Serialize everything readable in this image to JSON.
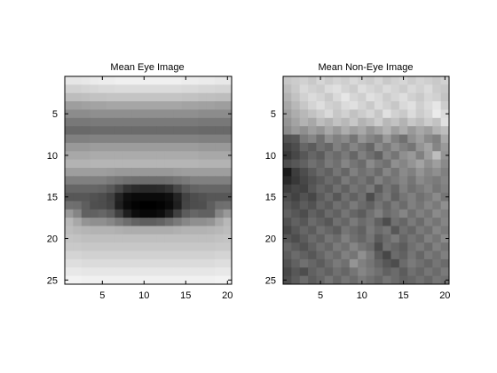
{
  "chart_data": [
    {
      "type": "heatmap",
      "title": "Mean Eye Image",
      "colormap": "gray",
      "xlim": [
        0.5,
        20.5
      ],
      "ylim": [
        0.5,
        25.5
      ],
      "y_reversed": true,
      "xticks": [
        5,
        10,
        15,
        20
      ],
      "yticks": [
        5,
        10,
        15,
        20,
        25
      ],
      "grid": false,
      "ncols": 20,
      "nrows": 25,
      "value_range": [
        0,
        1
      ],
      "values": [
        [
          0.9,
          0.9,
          0.91,
          0.92,
          0.93,
          0.93,
          0.94,
          0.94,
          0.94,
          0.94,
          0.94,
          0.94,
          0.94,
          0.94,
          0.93,
          0.93,
          0.92,
          0.92,
          0.91,
          0.91
        ],
        [
          0.82,
          0.82,
          0.83,
          0.84,
          0.85,
          0.85,
          0.86,
          0.86,
          0.86,
          0.86,
          0.86,
          0.86,
          0.86,
          0.86,
          0.85,
          0.85,
          0.84,
          0.84,
          0.83,
          0.83
        ],
        [
          0.74,
          0.74,
          0.75,
          0.76,
          0.76,
          0.77,
          0.77,
          0.77,
          0.77,
          0.77,
          0.77,
          0.77,
          0.77,
          0.77,
          0.76,
          0.76,
          0.75,
          0.75,
          0.74,
          0.74
        ],
        [
          0.62,
          0.62,
          0.63,
          0.64,
          0.64,
          0.65,
          0.65,
          0.65,
          0.65,
          0.65,
          0.65,
          0.65,
          0.65,
          0.65,
          0.64,
          0.64,
          0.63,
          0.63,
          0.62,
          0.62
        ],
        [
          0.55,
          0.55,
          0.55,
          0.56,
          0.56,
          0.56,
          0.56,
          0.56,
          0.56,
          0.56,
          0.56,
          0.56,
          0.56,
          0.56,
          0.56,
          0.56,
          0.55,
          0.55,
          0.55,
          0.55
        ],
        [
          0.47,
          0.47,
          0.47,
          0.48,
          0.48,
          0.48,
          0.48,
          0.48,
          0.48,
          0.48,
          0.48,
          0.48,
          0.48,
          0.48,
          0.48,
          0.48,
          0.47,
          0.47,
          0.47,
          0.47
        ],
        [
          0.41,
          0.41,
          0.41,
          0.42,
          0.42,
          0.42,
          0.42,
          0.42,
          0.42,
          0.42,
          0.42,
          0.42,
          0.42,
          0.42,
          0.42,
          0.42,
          0.41,
          0.41,
          0.41,
          0.41
        ],
        [
          0.5,
          0.5,
          0.5,
          0.51,
          0.51,
          0.51,
          0.51,
          0.51,
          0.51,
          0.51,
          0.51,
          0.51,
          0.51,
          0.51,
          0.51,
          0.51,
          0.5,
          0.5,
          0.5,
          0.5
        ],
        [
          0.6,
          0.6,
          0.6,
          0.61,
          0.61,
          0.61,
          0.61,
          0.61,
          0.61,
          0.61,
          0.61,
          0.61,
          0.61,
          0.61,
          0.61,
          0.61,
          0.6,
          0.6,
          0.6,
          0.6
        ],
        [
          0.66,
          0.66,
          0.66,
          0.67,
          0.67,
          0.67,
          0.67,
          0.67,
          0.67,
          0.67,
          0.67,
          0.67,
          0.67,
          0.67,
          0.67,
          0.67,
          0.66,
          0.66,
          0.66,
          0.66
        ],
        [
          0.7,
          0.7,
          0.7,
          0.71,
          0.71,
          0.71,
          0.71,
          0.71,
          0.71,
          0.71,
          0.71,
          0.71,
          0.71,
          0.71,
          0.71,
          0.71,
          0.7,
          0.7,
          0.7,
          0.7
        ],
        [
          0.62,
          0.62,
          0.62,
          0.62,
          0.62,
          0.61,
          0.6,
          0.6,
          0.6,
          0.6,
          0.6,
          0.6,
          0.6,
          0.61,
          0.62,
          0.62,
          0.62,
          0.62,
          0.62,
          0.62
        ],
        [
          0.5,
          0.5,
          0.5,
          0.5,
          0.5,
          0.48,
          0.46,
          0.44,
          0.43,
          0.43,
          0.43,
          0.43,
          0.44,
          0.46,
          0.48,
          0.5,
          0.5,
          0.5,
          0.5,
          0.5
        ],
        [
          0.4,
          0.4,
          0.4,
          0.4,
          0.39,
          0.35,
          0.28,
          0.2,
          0.17,
          0.16,
          0.16,
          0.17,
          0.2,
          0.28,
          0.35,
          0.39,
          0.4,
          0.4,
          0.4,
          0.4
        ],
        [
          0.34,
          0.34,
          0.34,
          0.32,
          0.3,
          0.26,
          0.14,
          0.06,
          0.04,
          0.04,
          0.04,
          0.04,
          0.06,
          0.14,
          0.26,
          0.3,
          0.32,
          0.34,
          0.34,
          0.34
        ],
        [
          0.44,
          0.43,
          0.37,
          0.31,
          0.3,
          0.27,
          0.12,
          0.04,
          0.01,
          0.0,
          0.0,
          0.01,
          0.04,
          0.12,
          0.27,
          0.3,
          0.31,
          0.37,
          0.43,
          0.44
        ],
        [
          0.6,
          0.52,
          0.38,
          0.38,
          0.4,
          0.36,
          0.25,
          0.12,
          0.05,
          0.03,
          0.03,
          0.05,
          0.12,
          0.25,
          0.36,
          0.4,
          0.38,
          0.38,
          0.52,
          0.6
        ],
        [
          0.72,
          0.66,
          0.58,
          0.56,
          0.56,
          0.53,
          0.48,
          0.43,
          0.39,
          0.37,
          0.37,
          0.39,
          0.43,
          0.48,
          0.53,
          0.56,
          0.56,
          0.58,
          0.66,
          0.72
        ],
        [
          0.74,
          0.72,
          0.71,
          0.7,
          0.7,
          0.7,
          0.69,
          0.68,
          0.68,
          0.68,
          0.68,
          0.68,
          0.68,
          0.69,
          0.7,
          0.7,
          0.7,
          0.71,
          0.72,
          0.74
        ],
        [
          0.77,
          0.76,
          0.75,
          0.75,
          0.75,
          0.75,
          0.75,
          0.75,
          0.75,
          0.75,
          0.75,
          0.75,
          0.75,
          0.75,
          0.75,
          0.75,
          0.75,
          0.75,
          0.76,
          0.77
        ],
        [
          0.79,
          0.79,
          0.78,
          0.78,
          0.78,
          0.78,
          0.78,
          0.78,
          0.78,
          0.78,
          0.78,
          0.78,
          0.78,
          0.78,
          0.78,
          0.78,
          0.78,
          0.78,
          0.79,
          0.79
        ],
        [
          0.83,
          0.83,
          0.82,
          0.82,
          0.82,
          0.82,
          0.82,
          0.82,
          0.82,
          0.82,
          0.82,
          0.82,
          0.82,
          0.82,
          0.82,
          0.82,
          0.82,
          0.82,
          0.83,
          0.83
        ],
        [
          0.87,
          0.87,
          0.86,
          0.86,
          0.86,
          0.86,
          0.86,
          0.86,
          0.86,
          0.86,
          0.86,
          0.86,
          0.86,
          0.86,
          0.86,
          0.86,
          0.86,
          0.86,
          0.87,
          0.87
        ],
        [
          0.91,
          0.91,
          0.9,
          0.9,
          0.9,
          0.9,
          0.9,
          0.9,
          0.9,
          0.9,
          0.9,
          0.9,
          0.9,
          0.9,
          0.9,
          0.9,
          0.9,
          0.9,
          0.91,
          0.91
        ],
        [
          0.95,
          0.95,
          0.94,
          0.94,
          0.94,
          0.94,
          0.94,
          0.94,
          0.94,
          0.94,
          0.94,
          0.94,
          0.94,
          0.94,
          0.94,
          0.94,
          0.94,
          0.94,
          0.95,
          0.95
        ]
      ]
    },
    {
      "type": "heatmap",
      "title": "Mean Non-Eye Image",
      "colormap": "gray",
      "xlim": [
        0.5,
        20.5
      ],
      "ylim": [
        0.5,
        25.5
      ],
      "y_reversed": true,
      "xticks": [
        5,
        10,
        15,
        20
      ],
      "yticks": [
        5,
        10,
        15,
        20,
        25
      ],
      "grid": false,
      "ncols": 20,
      "nrows": 25,
      "value_range": [
        0,
        1
      ],
      "values": [
        [
          0.78,
          0.8,
          0.82,
          0.79,
          0.84,
          0.8,
          0.83,
          0.81,
          0.85,
          0.82,
          0.8,
          0.84,
          0.79,
          0.82,
          0.84,
          0.8,
          0.83,
          0.81,
          0.79,
          0.82
        ],
        [
          0.74,
          0.79,
          0.85,
          0.82,
          0.8,
          0.86,
          0.88,
          0.83,
          0.8,
          0.87,
          0.84,
          0.81,
          0.86,
          0.83,
          0.8,
          0.85,
          0.82,
          0.86,
          0.8,
          0.78
        ],
        [
          0.7,
          0.76,
          0.82,
          0.86,
          0.83,
          0.79,
          0.85,
          0.9,
          0.84,
          0.81,
          0.88,
          0.85,
          0.8,
          0.84,
          0.87,
          0.82,
          0.79,
          0.84,
          0.82,
          0.76
        ],
        [
          0.66,
          0.72,
          0.78,
          0.83,
          0.87,
          0.82,
          0.8,
          0.86,
          0.88,
          0.83,
          0.79,
          0.86,
          0.82,
          0.78,
          0.85,
          0.88,
          0.81,
          0.86,
          0.9,
          0.8
        ],
        [
          0.62,
          0.68,
          0.72,
          0.76,
          0.8,
          0.85,
          0.78,
          0.82,
          0.76,
          0.8,
          0.84,
          0.78,
          0.88,
          0.82,
          0.79,
          0.86,
          0.8,
          0.84,
          0.92,
          0.86
        ],
        [
          0.58,
          0.64,
          0.7,
          0.66,
          0.74,
          0.7,
          0.76,
          0.72,
          0.78,
          0.7,
          0.74,
          0.8,
          0.72,
          0.76,
          0.7,
          0.78,
          0.74,
          0.8,
          0.76,
          0.88
        ],
        [
          0.54,
          0.6,
          0.56,
          0.62,
          0.58,
          0.66,
          0.6,
          0.68,
          0.62,
          0.66,
          0.58,
          0.64,
          0.7,
          0.62,
          0.68,
          0.6,
          0.66,
          0.62,
          0.7,
          0.74
        ],
        [
          0.32,
          0.34,
          0.48,
          0.52,
          0.44,
          0.56,
          0.5,
          0.54,
          0.46,
          0.58,
          0.52,
          0.48,
          0.6,
          0.5,
          0.44,
          0.56,
          0.62,
          0.54,
          0.5,
          0.66
        ],
        [
          0.26,
          0.3,
          0.4,
          0.36,
          0.44,
          0.4,
          0.5,
          0.44,
          0.52,
          0.46,
          0.4,
          0.54,
          0.48,
          0.56,
          0.5,
          0.46,
          0.58,
          0.64,
          0.52,
          0.6
        ],
        [
          0.22,
          0.28,
          0.34,
          0.4,
          0.36,
          0.46,
          0.42,
          0.48,
          0.4,
          0.5,
          0.44,
          0.38,
          0.52,
          0.46,
          0.56,
          0.6,
          0.5,
          0.62,
          0.74,
          0.58
        ],
        [
          0.3,
          0.34,
          0.38,
          0.44,
          0.4,
          0.48,
          0.44,
          0.52,
          0.46,
          0.42,
          0.54,
          0.48,
          0.44,
          0.56,
          0.52,
          0.58,
          0.64,
          0.56,
          0.62,
          0.54
        ],
        [
          0.1,
          0.24,
          0.3,
          0.36,
          0.42,
          0.38,
          0.46,
          0.4,
          0.5,
          0.44,
          0.48,
          0.42,
          0.52,
          0.46,
          0.54,
          0.5,
          0.58,
          0.52,
          0.56,
          0.5
        ],
        [
          0.16,
          0.22,
          0.28,
          0.32,
          0.36,
          0.42,
          0.38,
          0.48,
          0.42,
          0.46,
          0.4,
          0.5,
          0.44,
          0.48,
          0.52,
          0.46,
          0.54,
          0.5,
          0.48,
          0.52
        ],
        [
          0.24,
          0.28,
          0.26,
          0.34,
          0.4,
          0.36,
          0.44,
          0.38,
          0.46,
          0.42,
          0.48,
          0.36,
          0.46,
          0.4,
          0.5,
          0.44,
          0.48,
          0.52,
          0.46,
          0.5
        ],
        [
          0.3,
          0.26,
          0.32,
          0.28,
          0.36,
          0.42,
          0.34,
          0.44,
          0.38,
          0.44,
          0.3,
          0.42,
          0.48,
          0.38,
          0.46,
          0.5,
          0.44,
          0.48,
          0.54,
          0.46
        ],
        [
          0.34,
          0.3,
          0.36,
          0.32,
          0.4,
          0.36,
          0.44,
          0.4,
          0.48,
          0.42,
          0.38,
          0.46,
          0.4,
          0.48,
          0.42,
          0.5,
          0.46,
          0.52,
          0.48,
          0.56
        ],
        [
          0.38,
          0.34,
          0.3,
          0.38,
          0.34,
          0.42,
          0.38,
          0.46,
          0.4,
          0.36,
          0.44,
          0.5,
          0.42,
          0.46,
          0.52,
          0.44,
          0.5,
          0.46,
          0.54,
          0.5
        ],
        [
          0.32,
          0.38,
          0.34,
          0.42,
          0.38,
          0.34,
          0.44,
          0.4,
          0.48,
          0.42,
          0.46,
          0.38,
          0.3,
          0.44,
          0.4,
          0.48,
          0.42,
          0.5,
          0.46,
          0.52
        ],
        [
          0.28,
          0.34,
          0.4,
          0.36,
          0.44,
          0.4,
          0.36,
          0.46,
          0.42,
          0.38,
          0.48,
          0.42,
          0.46,
          0.34,
          0.44,
          0.4,
          0.48,
          0.44,
          0.52,
          0.48
        ],
        [
          0.34,
          0.3,
          0.36,
          0.42,
          0.38,
          0.46,
          0.42,
          0.5,
          0.44,
          0.4,
          0.46,
          0.36,
          0.42,
          0.48,
          0.4,
          0.46,
          0.42,
          0.5,
          0.46,
          0.54
        ],
        [
          0.4,
          0.36,
          0.32,
          0.38,
          0.44,
          0.4,
          0.48,
          0.44,
          0.52,
          0.46,
          0.42,
          0.3,
          0.44,
          0.4,
          0.36,
          0.44,
          0.48,
          0.42,
          0.5,
          0.46
        ],
        [
          0.36,
          0.42,
          0.38,
          0.34,
          0.4,
          0.46,
          0.42,
          0.5,
          0.46,
          0.56,
          0.48,
          0.36,
          0.28,
          0.42,
          0.38,
          0.46,
          0.4,
          0.48,
          0.44,
          0.5
        ],
        [
          0.32,
          0.38,
          0.44,
          0.4,
          0.36,
          0.42,
          0.48,
          0.44,
          0.58,
          0.5,
          0.46,
          0.4,
          0.34,
          0.3,
          0.42,
          0.48,
          0.44,
          0.4,
          0.46,
          0.42
        ],
        [
          0.28,
          0.34,
          0.3,
          0.38,
          0.42,
          0.38,
          0.44,
          0.4,
          0.46,
          0.52,
          0.48,
          0.44,
          0.38,
          0.42,
          0.36,
          0.44,
          0.4,
          0.46,
          0.42,
          0.48
        ],
        [
          0.3,
          0.36,
          0.42,
          0.36,
          0.4,
          0.46,
          0.4,
          0.46,
          0.42,
          0.48,
          0.44,
          0.4,
          0.46,
          0.42,
          0.38,
          0.4,
          0.44,
          0.4,
          0.46,
          0.44
        ]
      ]
    }
  ]
}
